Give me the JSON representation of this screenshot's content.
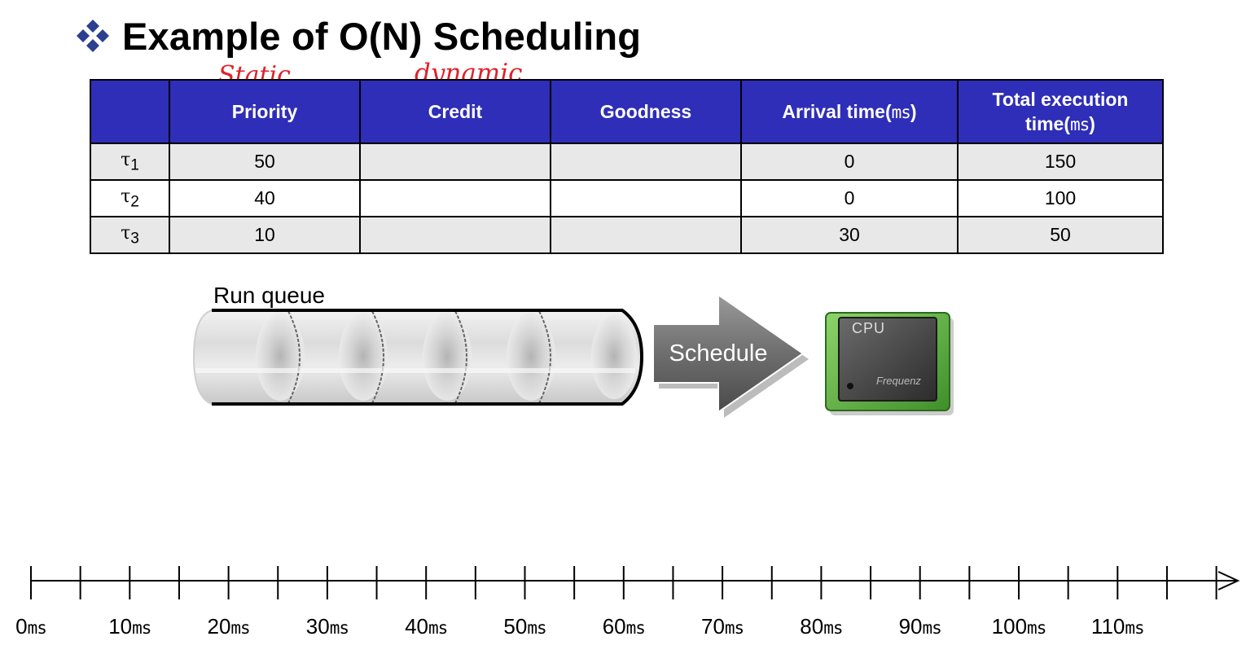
{
  "slide": {
    "title": "Example of O(N) Scheduling",
    "bullet_icon": "diamond-cluster-bullet"
  },
  "annotations": {
    "priority_note": "Static",
    "credit_note": "dynamic",
    "color": "#e0202a"
  },
  "table": {
    "header_color": "#2e2eb8",
    "headers": {
      "task": "",
      "priority": "Priority",
      "credit": "Credit",
      "goodness": "Goodness",
      "arrival_label": "Arrival time(",
      "arrival_unit": "ms",
      "arrival_close": ")",
      "total_label_1": "Total execution",
      "total_label_2": "time(",
      "total_unit": "ms",
      "total_close": ")"
    },
    "rows": [
      {
        "task_symbol": "τ",
        "task_index": "1",
        "priority": "50",
        "credit": "",
        "goodness": "",
        "arrival": "0",
        "total": "150"
      },
      {
        "task_symbol": "τ",
        "task_index": "2",
        "priority": "40",
        "credit": "",
        "goodness": "",
        "arrival": "0",
        "total": "100"
      },
      {
        "task_symbol": "τ",
        "task_index": "3",
        "priority": "10",
        "credit": "",
        "goodness": "",
        "arrival": "30",
        "total": "50"
      }
    ]
  },
  "diagram": {
    "run_queue_label": "Run queue",
    "schedule_label": "Schedule",
    "cpu_label": "CPU",
    "cpu_sublabel": "Frequenz"
  },
  "timeline": {
    "unit": "ms",
    "labels": [
      "0",
      "10",
      "20",
      "30",
      "40",
      "50",
      "60",
      "70",
      "80",
      "90",
      "100",
      "110"
    ],
    "start_ms": 0,
    "tick_step_ms": 5,
    "tick_count": 25
  }
}
